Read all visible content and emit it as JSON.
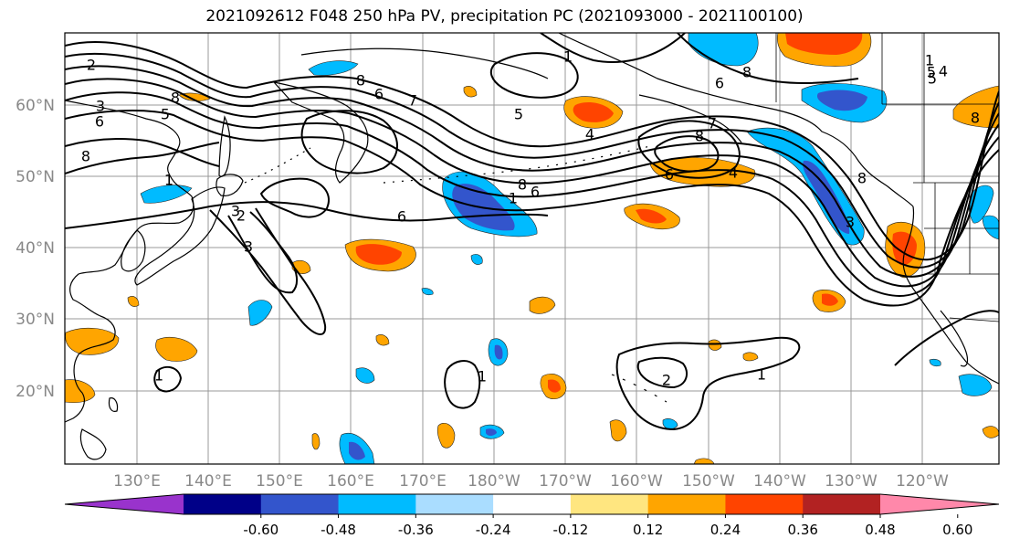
{
  "title": "2021092612 F048 250 hPa PV, precipitation PC (2021093000 - 2021100100)",
  "lat_labels": [
    "60°N",
    "50°N",
    "40°N",
    "30°N",
    "20°N"
  ],
  "lon_labels": [
    "130°E",
    "140°E",
    "150°E",
    "160°E",
    "170°E",
    "180°W",
    "170°W",
    "160°W",
    "150°W",
    "140°W",
    "130°W",
    "120°W"
  ],
  "colorbar": {
    "colors": [
      "#9933cc",
      "#000088",
      "#3355cc",
      "#00bbff",
      "#aaddff",
      "#ffffff",
      "#ffe680",
      "#ffa500",
      "#ff4400",
      "#b22222",
      "#ff88aa"
    ],
    "tick_labels": [
      "-0.60",
      "-0.48",
      "-0.36",
      "-0.24",
      "-0.12",
      "0.12",
      "0.24",
      "0.36",
      "0.48",
      "0.60"
    ]
  },
  "pv_contour_labels": [
    "2",
    "3",
    "5",
    "6",
    "8",
    "1",
    "8",
    "8",
    "6",
    "7",
    "5",
    "4",
    "8",
    "6",
    "7",
    "6",
    "4",
    "8",
    "6",
    "1",
    "5",
    "8",
    "1",
    "3",
    "2",
    "1",
    "1",
    "2",
    "1",
    "1",
    "8",
    "3",
    "4",
    "5",
    "6",
    "8",
    "3"
  ]
}
